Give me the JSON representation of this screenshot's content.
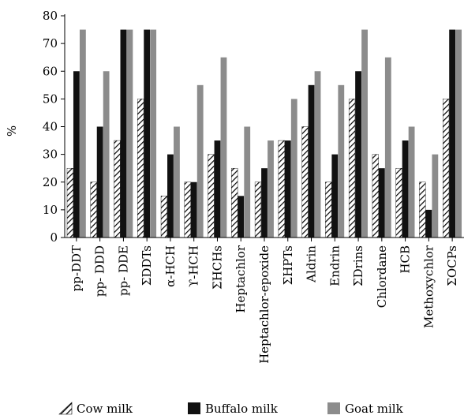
{
  "chart_data": {
    "type": "bar",
    "ylabel": "%",
    "xlabel": "",
    "ylim": [
      0,
      80
    ],
    "yticks": [
      0,
      10,
      20,
      30,
      40,
      50,
      60,
      70,
      80
    ],
    "grid": false,
    "legend_position": "bottom",
    "categories": [
      "pp-DDT",
      "pp- DDD",
      "pp- DDE",
      "ΣDDTs",
      "α-HCH",
      "ϒ-HCH",
      "ΣHCHs",
      "Heptachlor",
      "Heptachlor-epoxide",
      "ΣHPTs",
      "Aldrin",
      "Endrin",
      "ΣDrins",
      "Chlordane",
      "HCB",
      "Methoxychlor",
      "ΣOCPs"
    ],
    "series": [
      {
        "name": "Cow milk",
        "pattern": "hatched",
        "color": "#ffffff",
        "values": [
          25,
          20,
          35,
          50,
          15,
          20,
          30,
          25,
          20,
          35,
          40,
          20,
          50,
          30,
          25,
          20,
          50
        ]
      },
      {
        "name": "Buffalo milk",
        "pattern": "solid",
        "color": "#111111",
        "values": [
          60,
          40,
          75,
          75,
          30,
          20,
          35,
          15,
          25,
          35,
          55,
          30,
          60,
          25,
          35,
          10,
          75
        ]
      },
      {
        "name": "Goat milk",
        "pattern": "solid",
        "color": "#8c8c8c",
        "values": [
          75,
          60,
          75,
          75,
          40,
          55,
          65,
          40,
          35,
          50,
          60,
          55,
          75,
          65,
          40,
          30,
          75
        ]
      }
    ]
  }
}
